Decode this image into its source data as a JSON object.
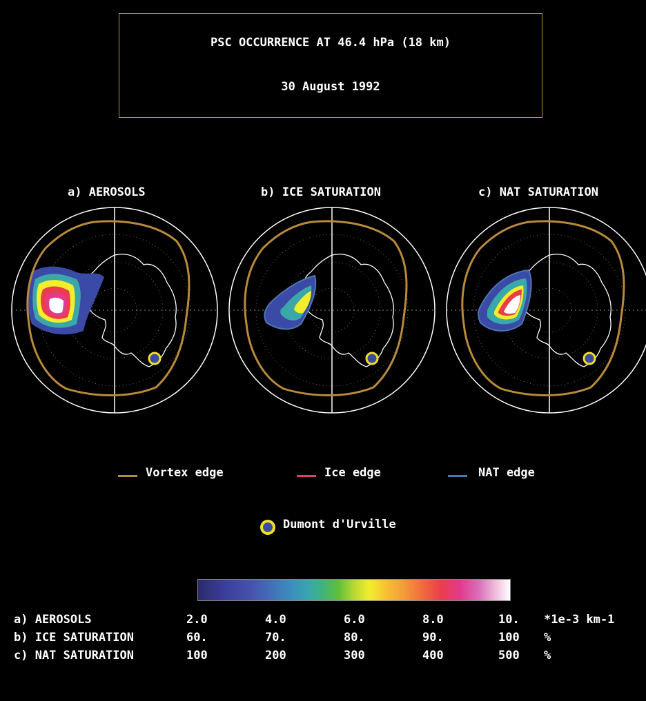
{
  "header": {
    "title": "PSC OCCURRENCE AT 46.4 hPa (18 km)",
    "date": "30 August 1992"
  },
  "maps": [
    {
      "label": "a) AEROSOLS"
    },
    {
      "label": "b) ICE SATURATION"
    },
    {
      "label": "c) NAT SATURATION"
    }
  ],
  "legend": {
    "vortex": "Vortex edge",
    "ice": "Ice edge",
    "nat": "NAT edge",
    "station": "Dumont d'Urville",
    "colors": {
      "vortex": "#b88a3c",
      "ice": "#d8407a",
      "nat": "#4a78b0",
      "station": "#f2e020"
    }
  },
  "scale": {
    "rows": [
      {
        "label": "a) AEROSOLS",
        "ticks": [
          "2.0",
          "4.0",
          "6.0",
          "8.0",
          "10."
        ],
        "unit": "*1e-3 km-1"
      },
      {
        "label": "b) ICE SATURATION",
        "ticks": [
          "60.",
          "70.",
          "80.",
          "90.",
          "100"
        ],
        "unit": "%"
      },
      {
        "label": "c) NAT SATURATION",
        "ticks": [
          "100",
          "200",
          "300",
          "400",
          "500"
        ],
        "unit": "%"
      }
    ]
  }
}
